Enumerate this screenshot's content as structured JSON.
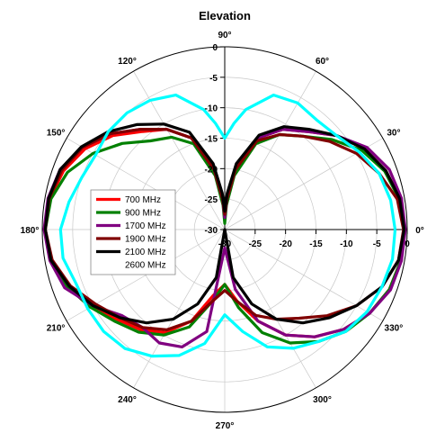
{
  "chart_data": {
    "type": "line",
    "polar": true,
    "title": "Elevation",
    "angle_unit": "degrees",
    "r_unit": "dB",
    "r_range": [
      -30,
      0
    ],
    "r_ticks": [
      "-30",
      "-25",
      "-20",
      "-15",
      "-10",
      "-5",
      "0"
    ],
    "angle_ticks": [
      "0°",
      "30°",
      "60°",
      "90°",
      "120°",
      "150°",
      "180°",
      "210°",
      "240°",
      "270°",
      "300°",
      "330°"
    ],
    "grid": true,
    "legend_position": "center-left",
    "colors": {
      "700 MHz": "#ff0000",
      "900 MHz": "#008000",
      "1700 MHz": "#800080",
      "1900 MHz": "#800000",
      "2100 MHz": "#000000",
      "2600 MHz": "#00ffff"
    },
    "series": [
      {
        "name": "700 MHz",
        "points": [
          [
            0,
            -0.5
          ],
          [
            10,
            -0.8
          ],
          [
            20,
            -1.8
          ],
          [
            30,
            -3.5
          ],
          [
            40,
            -6
          ],
          [
            50,
            -9
          ],
          [
            60,
            -11
          ],
          [
            70,
            -14
          ],
          [
            80,
            -20
          ],
          [
            86,
            -25
          ],
          [
            90,
            -28
          ],
          [
            94,
            -25
          ],
          [
            100,
            -20
          ],
          [
            110,
            -14
          ],
          [
            120,
            -11
          ],
          [
            130,
            -9
          ],
          [
            140,
            -6
          ],
          [
            150,
            -3.5
          ],
          [
            160,
            -1.8
          ],
          [
            170,
            -0.8
          ],
          [
            180,
            -0.5
          ],
          [
            190,
            -1
          ],
          [
            200,
            -2.5
          ],
          [
            210,
            -4.5
          ],
          [
            220,
            -7
          ],
          [
            230,
            -8.5
          ],
          [
            240,
            -10.5
          ],
          [
            250,
            -14
          ],
          [
            260,
            -19
          ],
          [
            270,
            -21
          ],
          [
            280,
            -18
          ],
          [
            290,
            -14
          ],
          [
            300,
            -10
          ],
          [
            310,
            -7
          ],
          [
            320,
            -4.5
          ],
          [
            330,
            -2.5
          ],
          [
            340,
            -1.2
          ],
          [
            350,
            -0.6
          ],
          [
            360,
            -0.5
          ]
        ]
      },
      {
        "name": "900 MHz",
        "points": [
          [
            0,
            -0.5
          ],
          [
            10,
            -0.9
          ],
          [
            20,
            -2
          ],
          [
            30,
            -4
          ],
          [
            40,
            -7
          ],
          [
            50,
            -10
          ],
          [
            60,
            -12
          ],
          [
            70,
            -15
          ],
          [
            80,
            -21
          ],
          [
            86,
            -26
          ],
          [
            90,
            -29
          ],
          [
            94,
            -26
          ],
          [
            100,
            -21
          ],
          [
            110,
            -15
          ],
          [
            120,
            -12.5
          ],
          [
            130,
            -11
          ],
          [
            140,
            -8
          ],
          [
            150,
            -5
          ],
          [
            160,
            -2.5
          ],
          [
            170,
            -1
          ],
          [
            180,
            -0.5
          ],
          [
            190,
            -1
          ],
          [
            200,
            -2.5
          ],
          [
            210,
            -4.5
          ],
          [
            220,
            -6.5
          ],
          [
            230,
            -8
          ],
          [
            240,
            -10
          ],
          [
            250,
            -13
          ],
          [
            260,
            -18
          ],
          [
            270,
            -21
          ],
          [
            280,
            -17
          ],
          [
            290,
            -12
          ],
          [
            300,
            -8.5
          ],
          [
            310,
            -6
          ],
          [
            320,
            -4
          ],
          [
            330,
            -2.5
          ],
          [
            340,
            -1.2
          ],
          [
            350,
            -0.6
          ],
          [
            360,
            -0.5
          ]
        ]
      },
      {
        "name": "1700 MHz",
        "points": [
          [
            0,
            -0.3
          ],
          [
            10,
            -0.5
          ],
          [
            20,
            -1.2
          ],
          [
            30,
            -3
          ],
          [
            40,
            -6
          ],
          [
            50,
            -9
          ],
          [
            60,
            -11
          ],
          [
            70,
            -14
          ],
          [
            80,
            -20
          ],
          [
            86,
            -25
          ],
          [
            90,
            -28
          ],
          [
            94,
            -25
          ],
          [
            100,
            -20
          ],
          [
            110,
            -14
          ],
          [
            120,
            -11
          ],
          [
            130,
            -8.5
          ],
          [
            140,
            -5.5
          ],
          [
            150,
            -3
          ],
          [
            160,
            -1.2
          ],
          [
            170,
            -0.5
          ],
          [
            180,
            -0.3
          ],
          [
            190,
            -0.8
          ],
          [
            200,
            -2
          ],
          [
            210,
            -5
          ],
          [
            220,
            -8
          ],
          [
            230,
            -9
          ],
          [
            240,
            -8.5
          ],
          [
            250,
            -9.5
          ],
          [
            260,
            -13
          ],
          [
            270,
            -27
          ],
          [
            280,
            -20
          ],
          [
            290,
            -14
          ],
          [
            300,
            -10
          ],
          [
            310,
            -7
          ],
          [
            320,
            -4.5
          ],
          [
            330,
            -2.5
          ],
          [
            340,
            -1
          ],
          [
            350,
            -0.5
          ],
          [
            360,
            -0.3
          ]
        ]
      },
      {
        "name": "1900 MHz",
        "points": [
          [
            0,
            -0.6
          ],
          [
            10,
            -1.2
          ],
          [
            20,
            -3
          ],
          [
            30,
            -5
          ],
          [
            40,
            -7.5
          ],
          [
            50,
            -10
          ],
          [
            60,
            -12
          ],
          [
            70,
            -14.5
          ],
          [
            80,
            -20
          ],
          [
            86,
            -25
          ],
          [
            90,
            -27.5
          ],
          [
            94,
            -25
          ],
          [
            100,
            -20
          ],
          [
            110,
            -14
          ],
          [
            120,
            -11
          ],
          [
            130,
            -8.5
          ],
          [
            140,
            -5.5
          ],
          [
            150,
            -3
          ],
          [
            160,
            -1.5
          ],
          [
            170,
            -0.7
          ],
          [
            180,
            -0.5
          ],
          [
            190,
            -1.2
          ],
          [
            200,
            -3
          ],
          [
            210,
            -5.5
          ],
          [
            220,
            -7.5
          ],
          [
            230,
            -9
          ],
          [
            240,
            -11
          ],
          [
            250,
            -14
          ],
          [
            260,
            -18
          ],
          [
            270,
            -20
          ],
          [
            280,
            -18
          ],
          [
            290,
            -15
          ],
          [
            300,
            -13
          ],
          [
            310,
            -11
          ],
          [
            320,
            -8
          ],
          [
            330,
            -5
          ],
          [
            340,
            -2.5
          ],
          [
            350,
            -1
          ],
          [
            360,
            -0.6
          ]
        ]
      },
      {
        "name": "2100 MHz",
        "points": [
          [
            0,
            -0.5
          ],
          [
            10,
            -0.8
          ],
          [
            20,
            -1.8
          ],
          [
            30,
            -3.5
          ],
          [
            40,
            -6
          ],
          [
            50,
            -8.5
          ],
          [
            60,
            -10.5
          ],
          [
            70,
            -13.5
          ],
          [
            80,
            -19
          ],
          [
            86,
            -24
          ],
          [
            90,
            -27
          ],
          [
            94,
            -24
          ],
          [
            100,
            -19
          ],
          [
            110,
            -13
          ],
          [
            120,
            -10
          ],
          [
            130,
            -7.5
          ],
          [
            140,
            -5
          ],
          [
            150,
            -2.8
          ],
          [
            160,
            -1.2
          ],
          [
            170,
            -0.6
          ],
          [
            180,
            -0.5
          ],
          [
            190,
            -1
          ],
          [
            200,
            -2.8
          ],
          [
            210,
            -5
          ],
          [
            220,
            -7.5
          ],
          [
            230,
            -10
          ],
          [
            240,
            -13
          ],
          [
            250,
            -17
          ],
          [
            260,
            -22
          ],
          [
            270,
            -30
          ],
          [
            280,
            -22
          ],
          [
            290,
            -17
          ],
          [
            300,
            -13
          ],
          [
            310,
            -10
          ],
          [
            320,
            -7.5
          ],
          [
            330,
            -5
          ],
          [
            340,
            -2.5
          ],
          [
            350,
            -1
          ],
          [
            360,
            -0.5
          ]
        ]
      },
      {
        "name": "2600 MHz",
        "points": [
          [
            0,
            -2
          ],
          [
            10,
            -2.3
          ],
          [
            20,
            -3
          ],
          [
            30,
            -4.5
          ],
          [
            40,
            -6
          ],
          [
            50,
            -6.5
          ],
          [
            60,
            -6
          ],
          [
            70,
            -6.5
          ],
          [
            80,
            -10
          ],
          [
            85,
            -12.5
          ],
          [
            90,
            -15
          ],
          [
            95,
            -12.5
          ],
          [
            100,
            -10
          ],
          [
            110,
            -6.5
          ],
          [
            120,
            -5.5
          ],
          [
            130,
            -5
          ],
          [
            140,
            -5
          ],
          [
            150,
            -5.5
          ],
          [
            160,
            -5
          ],
          [
            170,
            -4
          ],
          [
            180,
            -3
          ],
          [
            190,
            -3
          ],
          [
            200,
            -4
          ],
          [
            210,
            -4
          ],
          [
            220,
            -4
          ],
          [
            230,
            -4.5
          ],
          [
            240,
            -6
          ],
          [
            250,
            -8
          ],
          [
            260,
            -11
          ],
          [
            270,
            -16
          ],
          [
            280,
            -13
          ],
          [
            290,
            -9.5
          ],
          [
            300,
            -7.5
          ],
          [
            310,
            -6
          ],
          [
            320,
            -4
          ],
          [
            330,
            -3
          ],
          [
            340,
            -2.5
          ],
          [
            350,
            -2
          ],
          [
            360,
            -2
          ]
        ]
      }
    ]
  }
}
